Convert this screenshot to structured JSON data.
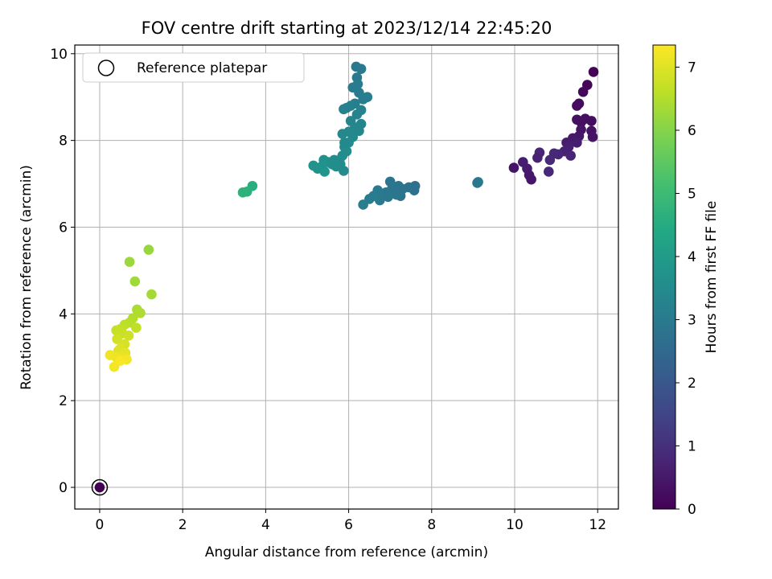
{
  "chart_data": {
    "type": "scatter",
    "title": "FOV centre drift starting at 2023/12/14 22:45:20",
    "xlabel": "Angular distance from reference (arcmin)",
    "ylabel": "Rotation from reference (arcmin)",
    "xlim": [
      -0.6,
      12.5
    ],
    "ylim": [
      -0.5,
      10.2
    ],
    "xticks": [
      0,
      2,
      4,
      6,
      8,
      10,
      12
    ],
    "yticks": [
      0,
      2,
      4,
      6,
      8,
      10
    ],
    "grid": true,
    "legend": {
      "placement": "top-left",
      "entries": [
        "Reference platepar"
      ]
    },
    "reference_point": {
      "x": 0,
      "y": 0
    },
    "colorbar": {
      "label": "Hours from first FF file",
      "range": [
        0,
        7.35
      ],
      "ticks": [
        0,
        1,
        2,
        3,
        4,
        5,
        6,
        7
      ],
      "colormap": "viridis"
    },
    "points": [
      {
        "x": 11.9,
        "y": 9.58,
        "t": 0.05
      },
      {
        "x": 11.75,
        "y": 9.28,
        "t": 0.1
      },
      {
        "x": 11.65,
        "y": 9.12,
        "t": 0.15
      },
      {
        "x": 11.55,
        "y": 8.85,
        "t": 0.2
      },
      {
        "x": 11.5,
        "y": 8.8,
        "t": 0.22
      },
      {
        "x": 11.85,
        "y": 8.45,
        "t": 0.25
      },
      {
        "x": 11.7,
        "y": 8.5,
        "t": 0.27
      },
      {
        "x": 11.6,
        "y": 8.42,
        "t": 0.3
      },
      {
        "x": 11.5,
        "y": 8.48,
        "t": 0.32
      },
      {
        "x": 11.85,
        "y": 8.22,
        "t": 0.35
      },
      {
        "x": 11.88,
        "y": 8.08,
        "t": 0.37
      },
      {
        "x": 11.6,
        "y": 8.25,
        "t": 0.4
      },
      {
        "x": 11.55,
        "y": 8.1,
        "t": 0.45
      },
      {
        "x": 11.4,
        "y": 8.05,
        "t": 0.5
      },
      {
        "x": 11.5,
        "y": 7.95,
        "t": 0.55
      },
      {
        "x": 11.25,
        "y": 7.95,
        "t": 0.6
      },
      {
        "x": 11.3,
        "y": 7.85,
        "t": 0.65
      },
      {
        "x": 11.2,
        "y": 7.75,
        "t": 0.7
      },
      {
        "x": 11.35,
        "y": 7.65,
        "t": 0.75
      },
      {
        "x": 11.05,
        "y": 7.68,
        "t": 0.8
      },
      {
        "x": 10.95,
        "y": 7.7,
        "t": 0.85
      },
      {
        "x": 10.85,
        "y": 7.55,
        "t": 0.85
      },
      {
        "x": 10.82,
        "y": 7.28,
        "t": 0.8
      },
      {
        "x": 10.6,
        "y": 7.72,
        "t": 0.75
      },
      {
        "x": 10.55,
        "y": 7.6,
        "t": 0.7
      },
      {
        "x": 10.2,
        "y": 7.5,
        "t": 0.6
      },
      {
        "x": 10.3,
        "y": 7.35,
        "t": 0.55
      },
      {
        "x": 10.35,
        "y": 7.2,
        "t": 0.5
      },
      {
        "x": 10.4,
        "y": 7.1,
        "t": 0.45
      },
      {
        "x": 9.98,
        "y": 7.37,
        "t": 0.4
      },
      {
        "x": 9.12,
        "y": 7.04,
        "t": 2.9
      },
      {
        "x": 9.1,
        "y": 7.02,
        "t": 2.95
      },
      {
        "x": 7.6,
        "y": 6.95,
        "t": 2.7
      },
      {
        "x": 7.58,
        "y": 6.85,
        "t": 2.72
      },
      {
        "x": 7.45,
        "y": 6.92,
        "t": 2.75
      },
      {
        "x": 7.3,
        "y": 6.88,
        "t": 2.78
      },
      {
        "x": 7.2,
        "y": 6.95,
        "t": 2.8
      },
      {
        "x": 7.1,
        "y": 6.8,
        "t": 2.82
      },
      {
        "x": 7.0,
        "y": 7.05,
        "t": 2.85
      },
      {
        "x": 7.05,
        "y": 6.9,
        "t": 2.88
      },
      {
        "x": 6.9,
        "y": 6.8,
        "t": 2.9
      },
      {
        "x": 6.95,
        "y": 6.7,
        "t": 2.92
      },
      {
        "x": 6.8,
        "y": 6.75,
        "t": 2.95
      },
      {
        "x": 6.75,
        "y": 6.62,
        "t": 2.98
      },
      {
        "x": 6.7,
        "y": 6.85,
        "t": 3.0
      },
      {
        "x": 6.6,
        "y": 6.72,
        "t": 3.02
      },
      {
        "x": 6.5,
        "y": 6.65,
        "t": 3.05
      },
      {
        "x": 6.35,
        "y": 6.52,
        "t": 3.08
      },
      {
        "x": 7.25,
        "y": 6.72,
        "t": 2.8
      },
      {
        "x": 7.15,
        "y": 6.75,
        "t": 2.84
      },
      {
        "x": 6.18,
        "y": 9.7,
        "t": 2.95
      },
      {
        "x": 6.3,
        "y": 9.65,
        "t": 2.97
      },
      {
        "x": 6.2,
        "y": 9.45,
        "t": 3.0
      },
      {
        "x": 6.22,
        "y": 9.3,
        "t": 3.02
      },
      {
        "x": 6.1,
        "y": 9.22,
        "t": 3.05
      },
      {
        "x": 6.25,
        "y": 9.1,
        "t": 3.07
      },
      {
        "x": 6.45,
        "y": 9.0,
        "t": 3.1
      },
      {
        "x": 6.35,
        "y": 8.95,
        "t": 3.12
      },
      {
        "x": 6.15,
        "y": 8.85,
        "t": 3.15
      },
      {
        "x": 6.05,
        "y": 8.8,
        "t": 3.17
      },
      {
        "x": 5.95,
        "y": 8.75,
        "t": 3.2
      },
      {
        "x": 5.88,
        "y": 8.72,
        "t": 3.22
      },
      {
        "x": 6.3,
        "y": 8.7,
        "t": 3.25
      },
      {
        "x": 6.2,
        "y": 8.6,
        "t": 3.27
      },
      {
        "x": 6.05,
        "y": 8.45,
        "t": 3.3
      },
      {
        "x": 6.3,
        "y": 8.38,
        "t": 3.32
      },
      {
        "x": 6.15,
        "y": 8.3,
        "t": 3.35
      },
      {
        "x": 6.25,
        "y": 8.22,
        "t": 3.37
      },
      {
        "x": 6.0,
        "y": 8.2,
        "t": 3.4
      },
      {
        "x": 5.85,
        "y": 8.15,
        "t": 3.42
      },
      {
        "x": 6.1,
        "y": 8.08,
        "t": 3.45
      },
      {
        "x": 6.0,
        "y": 7.95,
        "t": 3.47
      },
      {
        "x": 5.9,
        "y": 7.85,
        "t": 3.5
      },
      {
        "x": 5.95,
        "y": 7.75,
        "t": 3.52
      },
      {
        "x": 5.85,
        "y": 7.65,
        "t": 3.55
      },
      {
        "x": 5.78,
        "y": 7.55,
        "t": 3.57
      },
      {
        "x": 5.65,
        "y": 7.55,
        "t": 3.6
      },
      {
        "x": 5.6,
        "y": 7.45,
        "t": 3.62
      },
      {
        "x": 5.5,
        "y": 7.5,
        "t": 3.65
      },
      {
        "x": 5.4,
        "y": 7.55,
        "t": 3.67
      },
      {
        "x": 5.35,
        "y": 7.4,
        "t": 3.7
      },
      {
        "x": 5.25,
        "y": 7.35,
        "t": 3.72
      },
      {
        "x": 5.15,
        "y": 7.42,
        "t": 3.75
      },
      {
        "x": 5.42,
        "y": 7.28,
        "t": 3.77
      },
      {
        "x": 5.7,
        "y": 7.4,
        "t": 3.6
      },
      {
        "x": 5.88,
        "y": 7.3,
        "t": 3.5
      },
      {
        "x": 5.8,
        "y": 7.45,
        "t": 3.55
      },
      {
        "x": 5.9,
        "y": 7.95,
        "t": 3.45
      },
      {
        "x": 3.68,
        "y": 6.95,
        "t": 4.6
      },
      {
        "x": 3.55,
        "y": 6.82,
        "t": 4.65
      },
      {
        "x": 3.45,
        "y": 6.8,
        "t": 4.7
      },
      {
        "x": 1.18,
        "y": 5.48,
        "t": 6.2
      },
      {
        "x": 0.72,
        "y": 5.2,
        "t": 6.25
      },
      {
        "x": 0.85,
        "y": 4.75,
        "t": 6.3
      },
      {
        "x": 1.25,
        "y": 4.45,
        "t": 6.35
      },
      {
        "x": 0.9,
        "y": 4.1,
        "t": 6.4
      },
      {
        "x": 0.98,
        "y": 4.02,
        "t": 6.45
      },
      {
        "x": 0.8,
        "y": 3.9,
        "t": 6.5
      },
      {
        "x": 0.72,
        "y": 3.8,
        "t": 6.55
      },
      {
        "x": 0.6,
        "y": 3.75,
        "t": 6.6
      },
      {
        "x": 0.88,
        "y": 3.68,
        "t": 6.65
      },
      {
        "x": 0.5,
        "y": 3.65,
        "t": 6.7
      },
      {
        "x": 0.4,
        "y": 3.62,
        "t": 6.72
      },
      {
        "x": 0.55,
        "y": 3.55,
        "t": 6.75
      },
      {
        "x": 0.7,
        "y": 3.5,
        "t": 6.8
      },
      {
        "x": 0.42,
        "y": 3.42,
        "t": 6.85
      },
      {
        "x": 0.6,
        "y": 3.3,
        "t": 6.9
      },
      {
        "x": 0.5,
        "y": 3.2,
        "t": 6.95
      },
      {
        "x": 0.45,
        "y": 3.15,
        "t": 7.0
      },
      {
        "x": 0.62,
        "y": 3.1,
        "t": 7.05
      },
      {
        "x": 0.55,
        "y": 3.02,
        "t": 7.1
      },
      {
        "x": 0.4,
        "y": 3.0,
        "t": 7.15
      },
      {
        "x": 0.25,
        "y": 3.05,
        "t": 7.2
      },
      {
        "x": 0.65,
        "y": 2.95,
        "t": 7.22
      },
      {
        "x": 0.35,
        "y": 2.78,
        "t": 7.25
      },
      {
        "x": 0.5,
        "y": 2.92,
        "t": 7.3
      },
      {
        "x": 0.0,
        "y": 0.0,
        "t": 0.0
      }
    ]
  }
}
